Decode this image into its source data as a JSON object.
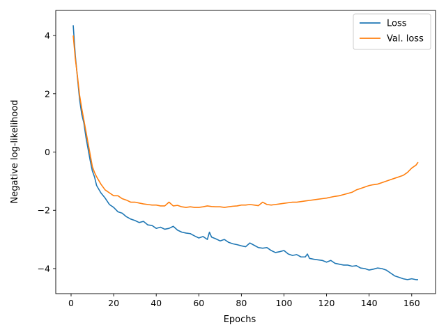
{
  "chart_data": {
    "type": "line",
    "title": "",
    "xlabel": "Epochs",
    "ylabel": "Negative log-likelihood",
    "xlim": [
      -7.2,
      171.2
    ],
    "ylim": [
      -4.86,
      4.86
    ],
    "xticks": [
      0,
      20,
      40,
      60,
      80,
      100,
      120,
      140,
      160
    ],
    "yticks": [
      -4,
      -2,
      0,
      2,
      4
    ],
    "grid": false,
    "legend_position": "top-right",
    "series": [
      {
        "name": "Loss",
        "color": "#1f77b4",
        "x": [
          1,
          2,
          3,
          4,
          5,
          6,
          7,
          8,
          9,
          10,
          11,
          12,
          14,
          16,
          18,
          20,
          22,
          24,
          26,
          28,
          30,
          32,
          34,
          36,
          38,
          40,
          42,
          44,
          46,
          48,
          50,
          52,
          54,
          56,
          58,
          60,
          62,
          64,
          65,
          66,
          68,
          70,
          72,
          74,
          76,
          78,
          80,
          82,
          84,
          86,
          88,
          90,
          92,
          94,
          96,
          98,
          100,
          102,
          104,
          106,
          108,
          110,
          111,
          112,
          114,
          116,
          118,
          120,
          122,
          124,
          126,
          128,
          130,
          132,
          134,
          136,
          138,
          140,
          142,
          144,
          146,
          148,
          150,
          152,
          154,
          156,
          158,
          160,
          162,
          163
        ],
        "y": [
          4.35,
          3.3,
          2.55,
          1.8,
          1.3,
          1.0,
          0.5,
          0.1,
          -0.3,
          -0.65,
          -0.85,
          -1.15,
          -1.4,
          -1.58,
          -1.8,
          -1.9,
          -2.05,
          -2.1,
          -2.22,
          -2.3,
          -2.35,
          -2.42,
          -2.38,
          -2.5,
          -2.52,
          -2.62,
          -2.58,
          -2.65,
          -2.62,
          -2.55,
          -2.68,
          -2.75,
          -2.78,
          -2.8,
          -2.88,
          -2.95,
          -2.9,
          -3.0,
          -2.75,
          -2.92,
          -2.98,
          -3.05,
          -3.0,
          -3.1,
          -3.15,
          -3.18,
          -3.22,
          -3.25,
          -3.12,
          -3.2,
          -3.28,
          -3.3,
          -3.28,
          -3.38,
          -3.45,
          -3.42,
          -3.38,
          -3.5,
          -3.55,
          -3.52,
          -3.6,
          -3.6,
          -3.5,
          -3.65,
          -3.68,
          -3.7,
          -3.72,
          -3.78,
          -3.72,
          -3.82,
          -3.85,
          -3.88,
          -3.88,
          -3.92,
          -3.9,
          -3.98,
          -4.0,
          -4.05,
          -4.02,
          -3.98,
          -4.0,
          -4.05,
          -4.15,
          -4.25,
          -4.3,
          -4.35,
          -4.38,
          -4.35,
          -4.38,
          -4.38
        ]
      },
      {
        "name": "Val. loss",
        "color": "#ff7f0e",
        "x": [
          1,
          2,
          3,
          4,
          5,
          6,
          7,
          8,
          9,
          10,
          11,
          12,
          14,
          16,
          18,
          20,
          22,
          24,
          26,
          28,
          30,
          32,
          34,
          36,
          38,
          40,
          42,
          44,
          46,
          48,
          50,
          52,
          54,
          56,
          58,
          60,
          62,
          64,
          66,
          68,
          70,
          72,
          74,
          76,
          78,
          80,
          82,
          84,
          86,
          88,
          90,
          92,
          94,
          96,
          98,
          100,
          102,
          104,
          106,
          108,
          110,
          112,
          114,
          116,
          118,
          120,
          122,
          124,
          126,
          128,
          130,
          132,
          134,
          136,
          138,
          140,
          142,
          144,
          146,
          148,
          150,
          152,
          154,
          156,
          158,
          160,
          162,
          163
        ],
        "y": [
          4.0,
          3.2,
          2.6,
          1.95,
          1.5,
          1.1,
          0.7,
          0.3,
          -0.1,
          -0.5,
          -0.7,
          -0.85,
          -1.1,
          -1.3,
          -1.4,
          -1.5,
          -1.5,
          -1.6,
          -1.65,
          -1.72,
          -1.72,
          -1.75,
          -1.78,
          -1.8,
          -1.82,
          -1.82,
          -1.85,
          -1.85,
          -1.72,
          -1.85,
          -1.83,
          -1.88,
          -1.9,
          -1.88,
          -1.9,
          -1.9,
          -1.88,
          -1.85,
          -1.87,
          -1.88,
          -1.88,
          -1.9,
          -1.88,
          -1.86,
          -1.85,
          -1.82,
          -1.82,
          -1.8,
          -1.82,
          -1.84,
          -1.72,
          -1.8,
          -1.82,
          -1.8,
          -1.78,
          -1.76,
          -1.74,
          -1.72,
          -1.72,
          -1.7,
          -1.68,
          -1.66,
          -1.64,
          -1.62,
          -1.6,
          -1.58,
          -1.55,
          -1.52,
          -1.5,
          -1.46,
          -1.42,
          -1.38,
          -1.3,
          -1.25,
          -1.2,
          -1.15,
          -1.12,
          -1.1,
          -1.05,
          -1.0,
          -0.95,
          -0.9,
          -0.85,
          -0.8,
          -0.7,
          -0.55,
          -0.45,
          -0.35
        ]
      }
    ]
  }
}
